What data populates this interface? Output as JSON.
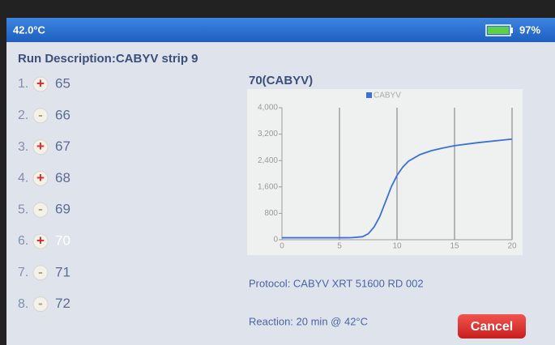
{
  "status_bar": {
    "temperature": "42.0°C",
    "battery": "97%"
  },
  "run_description": "Run Description:CABYV strip 9",
  "wells": [
    {
      "index": "1.",
      "sign": "+",
      "label": "65"
    },
    {
      "index": "2.",
      "sign": "-",
      "label": "66"
    },
    {
      "index": "3.",
      "sign": "+",
      "label": "67"
    },
    {
      "index": "4.",
      "sign": "+",
      "label": "68"
    },
    {
      "index": "5.",
      "sign": "-",
      "label": "69"
    },
    {
      "index": "6.",
      "sign": "+",
      "label": "70",
      "selected": true
    },
    {
      "index": "7.",
      "sign": "-",
      "label": "71"
    },
    {
      "index": "8.",
      "sign": "-",
      "label": "72"
    }
  ],
  "chart_data": {
    "type": "line",
    "title": "70(CABYV)",
    "x": [
      0,
      5,
      6,
      7,
      7.5,
      8,
      8.5,
      9,
      9.5,
      10,
      10.5,
      11,
      12,
      13,
      14,
      15,
      17,
      20
    ],
    "series": [
      {
        "name": "CABYV",
        "color": "#3a6fe0",
        "values": [
          60,
          60,
          62,
          90,
          180,
          380,
          700,
          1150,
          1600,
          1950,
          2200,
          2380,
          2580,
          2700,
          2780,
          2850,
          2940,
          3050
        ]
      }
    ],
    "xlim": [
      0,
      20
    ],
    "xticks": [
      0,
      5,
      10,
      15,
      20
    ],
    "ylim": [
      0,
      4000
    ],
    "yticks": [
      0,
      800,
      {
        "value": 1600,
        "label": "1,600"
      },
      {
        "value": 2400,
        "label": "2,400"
      },
      {
        "value": 3200,
        "label": "3,200"
      },
      {
        "value": 4000,
        "label": "4,000"
      }
    ],
    "xgrid": true
  },
  "protocol": "Protocol: CABYV XRT 51600 RD 002",
  "reaction": "Reaction: 20 min @ 42°C",
  "cancel_button": "Cancel"
}
